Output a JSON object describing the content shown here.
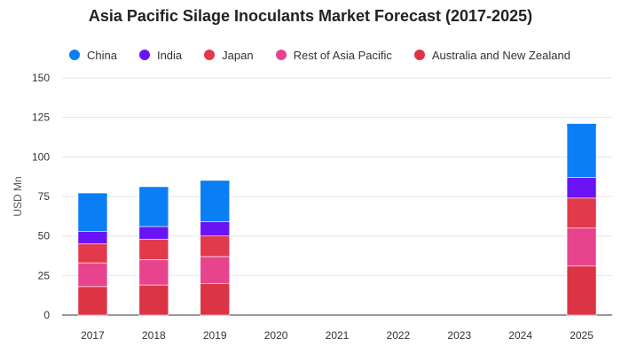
{
  "chart_data": {
    "type": "bar",
    "stacked": true,
    "title": "Asia Pacific Silage Inoculants Market Forecast (2017-2025)",
    "xlabel": "",
    "ylabel": "USD Mn",
    "ylim": [
      0,
      150
    ],
    "yticks": [
      0,
      25,
      50,
      75,
      100,
      125,
      150
    ],
    "grid": true,
    "legend_position": "top",
    "categories": [
      "2017",
      "2018",
      "2019",
      "2020",
      "2021",
      "2022",
      "2023",
      "2024",
      "2025"
    ],
    "series": [
      {
        "name": "China",
        "color": "#0a7ff5",
        "values": [
          24,
          25,
          26,
          null,
          null,
          null,
          null,
          null,
          34
        ]
      },
      {
        "name": "India",
        "color": "#6a14f5",
        "values": [
          8,
          8,
          9,
          null,
          null,
          null,
          null,
          null,
          13
        ]
      },
      {
        "name": "Japan",
        "color": "#e23a4a",
        "values": [
          12,
          13,
          13,
          null,
          null,
          null,
          null,
          null,
          19
        ]
      },
      {
        "name": "Rest of Asia Pacific",
        "color": "#e8448e",
        "values": [
          15,
          16,
          17,
          null,
          null,
          null,
          null,
          null,
          24
        ]
      },
      {
        "name": "Australia and New Zealand",
        "color": "#dc3444",
        "values": [
          18,
          19,
          20,
          null,
          null,
          null,
          null,
          null,
          31
        ]
      }
    ]
  }
}
